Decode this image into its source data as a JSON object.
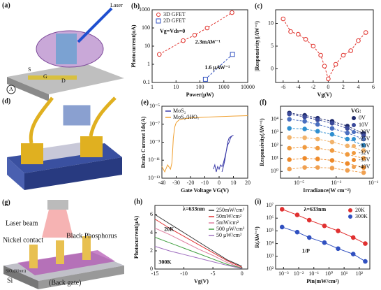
{
  "panels": {
    "a": {
      "letter": "(a)",
      "labels": [
        "Laser",
        "S",
        "G",
        "D",
        "A"
      ]
    },
    "d": {
      "letter": "(d)"
    },
    "g": {
      "letter": "(g)",
      "labels": [
        "Laser beam",
        "Nickel contact",
        "Black Phosphorus",
        "SiO₂(90nm)",
        "Si",
        "(Back gate)"
      ]
    }
  },
  "chart_data": [
    {
      "type": "scatter",
      "letter": "(b)",
      "xlabel": "Power(μW)",
      "ylabel": "Photocurrent(nA)",
      "xlog": true,
      "ylog": true,
      "xlim": [
        1,
        10000
      ],
      "xticks": [
        1,
        10,
        100,
        1000,
        10000
      ],
      "ylim": [
        0.1,
        1000
      ],
      "yticks": [
        0.1,
        1,
        10,
        100,
        1000
      ],
      "dashed": true,
      "hollow_markers": true,
      "legend": "upper left",
      "annotations": [
        "Vg=Vds=0",
        "2.3mAW⁻¹",
        "1.6 μAW⁻¹"
      ],
      "series": [
        {
          "name": "3D GFET",
          "color": "#e0302a",
          "marker": "circle",
          "x": [
            2,
            20,
            60,
            200,
            2200
          ],
          "values": [
            3.5,
            20,
            40,
            100,
            700
          ]
        },
        {
          "name": "2D GFET",
          "color": "#3050c0",
          "marker": "square",
          "x": [
            170,
            2300
          ],
          "values": [
            0.15,
            3.5
          ]
        }
      ]
    },
    {
      "type": "scatter",
      "letter": "(c)",
      "xlabel": "Vg(V)",
      "ylabel": "|Responsivity|(AW⁻¹)",
      "xlim": [
        -7,
        6
      ],
      "xticks": [
        -6,
        -4,
        -2,
        0,
        2,
        4,
        6
      ],
      "ylim": [
        -3,
        13
      ],
      "yticks": [
        0,
        5,
        10
      ],
      "dashed": true,
      "hollow_markers": true,
      "series": [
        {
          "name": "Responsivity",
          "color": "#e0302a",
          "marker": "circle",
          "x": [
            -6,
            -5,
            -4,
            -3,
            -2,
            -1,
            -0.5,
            0,
            1,
            2,
            3,
            4,
            5
          ],
          "values": [
            11,
            8.2,
            7.6,
            6.5,
            5,
            3,
            0.6,
            -2.2,
            1,
            3,
            4,
            6.2,
            8
          ]
        }
      ]
    },
    {
      "type": "line",
      "letter": "(e)",
      "xlabel": "Gate Voltage VG(V)",
      "ylabel": "Drain Current Ids(A)",
      "ylog": true,
      "xlim": [
        -40,
        20
      ],
      "xticks": [
        -40,
        -30,
        -20,
        -10,
        0,
        10,
        20
      ],
      "ylim": [
        1e-13,
        1e-05
      ],
      "yticks": [
        {
          "value": 1e-13,
          "label": "10⁻¹³"
        },
        {
          "value": 1e-11,
          "label": "10⁻¹¹"
        },
        {
          "value": 1e-09,
          "label": "10⁻⁹"
        },
        {
          "value": 1e-07,
          "label": "10⁻⁷"
        },
        {
          "value": 1e-05,
          "label": "10⁻⁵"
        }
      ],
      "legend": "upper left",
      "series": [
        {
          "name": "MoS₂",
          "color": "#3a3aa8",
          "marker": "none",
          "x": [
            -4,
            -3,
            -2,
            -1,
            0,
            1,
            2,
            3,
            4,
            5,
            6,
            7,
            8,
            9,
            10,
            9,
            8,
            7,
            6,
            5,
            4,
            3,
            2
          ],
          "values": [
            1e-12,
            3e-12,
            5e-13,
            2e-12,
            1e-12,
            3e-12,
            2e-12,
            5e-12,
            2e-11,
            1e-10,
            5e-10,
            1e-09,
            3e-09,
            5e-09,
            6e-09,
            5e-09,
            4e-09,
            3e-09,
            1e-09,
            1e-10,
            1e-11,
            2e-12,
            5e-13
          ]
        },
        {
          "name": "MoS₂/HfOₓ",
          "color": "#f0a030",
          "marker": "none",
          "x": [
            -40,
            -38,
            -36,
            -34,
            -33,
            -32.5,
            -32,
            -31,
            -30,
            -28,
            -25,
            -20,
            -10,
            0,
            10,
            20
          ],
          "values": [
            2e-12,
            5e-13,
            3e-12,
            1e-12,
            5e-12,
            1e-10,
            3e-09,
            5e-08,
            1.5e-07,
            3e-07,
            4e-07,
            5e-07,
            6e-07,
            7e-07,
            8e-07,
            9e-07
          ]
        }
      ]
    },
    {
      "type": "scatter",
      "letter": "(f)",
      "xlabel": "Irradiance(W cm⁻²)",
      "ylabel": "Responsivity(AW⁻¹)",
      "xlog": true,
      "ylog": true,
      "xlim": [
        1e-06,
        0.1
      ],
      "xticks": [
        {
          "value": 1e-05,
          "label": "10⁻⁵"
        },
        {
          "value": 0.001,
          "label": "10⁻³"
        },
        {
          "value": 0.1,
          "label": "10⁻¹"
        }
      ],
      "ylim": [
        0.3,
        100000
      ],
      "yticks": [
        {
          "value": 1,
          "label": "10⁰"
        },
        {
          "value": 10,
          "label": "10¹"
        },
        {
          "value": 100,
          "label": "10²"
        },
        {
          "value": 1000,
          "label": "10³"
        },
        {
          "value": 10000,
          "label": "10⁴"
        }
      ],
      "dashed": true,
      "legend": "upper right",
      "legend_title": "VG:",
      "series": [
        {
          "name": "0V",
          "color": "#1f2a6b",
          "marker": "circle",
          "x": [
            3e-06,
            2e-05,
            0.0001,
            0.0006,
            0.004,
            0.03
          ],
          "values": [
            30000,
            20000,
            12000,
            7000,
            3000,
            800
          ]
        },
        {
          "name": "10V",
          "color": "#3b4a9a",
          "marker": "circle",
          "x": [
            3e-06,
            2e-05,
            0.0001,
            0.0006,
            0.004,
            0.03
          ],
          "values": [
            25000,
            15000,
            9000,
            5000,
            2000,
            600
          ]
        },
        {
          "name": "-20V",
          "color": "#4a6fc0",
          "marker": "circle",
          "x": [
            3e-06,
            2e-05,
            0.0001,
            0.0006,
            0.004,
            0.03
          ],
          "values": [
            10000,
            7000,
            4000,
            2000,
            900,
            300
          ]
        },
        {
          "name": "-25V",
          "color": "#2f8fd0",
          "marker": "circle",
          "x": [
            3e-06,
            2e-05,
            0.0001,
            0.0006,
            0.004,
            0.03
          ],
          "values": [
            2000,
            1800,
            1200,
            700,
            300,
            100
          ]
        },
        {
          "name": "-30V",
          "color": "#f2b36b",
          "marker": "circle",
          "x": [
            3e-06,
            2e-05,
            0.0001,
            0.0006,
            0.004,
            0.03
          ],
          "values": [
            400,
            380,
            300,
            180,
            90,
            40
          ]
        },
        {
          "name": "-32V",
          "color": "#f09a3e",
          "marker": "circle",
          "x": [
            3e-06,
            2e-05,
            0.0001,
            0.0006,
            0.004,
            0.03
          ],
          "values": [
            60,
            70,
            60,
            40,
            20,
            10
          ]
        },
        {
          "name": "-35V",
          "color": "#ee8a2a",
          "marker": "circle",
          "x": [
            3e-06,
            2e-05,
            0.0001,
            0.0006,
            0.004,
            0.03
          ],
          "values": [
            8,
            10,
            9,
            7,
            4,
            2
          ]
        },
        {
          "name": "-40V",
          "color": "#f0a050",
          "marker": "circle",
          "x": [
            3e-06,
            2e-05,
            0.0001,
            0.0006,
            0.004,
            0.03
          ],
          "values": [
            1.5,
            2,
            2,
            1.8,
            1.2,
            0.8
          ]
        }
      ]
    },
    {
      "type": "line",
      "letter": "(h)",
      "xlabel": "Vg(V)",
      "ylabel": "Photocurrent(μA)",
      "xlim": [
        -15,
        1
      ],
      "xticks": [
        -15,
        -10,
        -5,
        0
      ],
      "ylim": [
        0,
        7
      ],
      "yticks": [
        0,
        2,
        4,
        6
      ],
      "legend": "upper right",
      "annotations": [
        "λ=633nm",
        "20K",
        "300K"
      ],
      "series": [
        {
          "name": "250mW/cm²",
          "color": "#333333",
          "marker": "none",
          "x": [
            -15,
            -12.5,
            -10,
            -7.5,
            -5,
            -2.5,
            0
          ],
          "values": [
            6,
            5,
            4,
            3,
            2,
            1,
            0.3
          ]
        },
        {
          "name": "50mW/cm²",
          "color": "#e03030",
          "marker": "none",
          "x": [
            -15,
            -12.5,
            -10,
            -7.5,
            -5,
            -2.5,
            0
          ],
          "values": [
            5.5,
            4.5,
            3.6,
            2.7,
            1.8,
            0.9,
            0.2
          ]
        },
        {
          "name": "5mW/cm²",
          "color": "#e080a0",
          "marker": "none",
          "x": [
            -15,
            -12.5,
            -10,
            -7.5,
            -5,
            -2.5,
            0
          ],
          "values": [
            4.5,
            3.8,
            3,
            2.2,
            1.5,
            0.7,
            0.1
          ]
        },
        {
          "name": "500 μW/cm²",
          "color": "#40a040",
          "marker": "none",
          "x": [
            -15,
            -12.5,
            -10,
            -7.5,
            -5,
            -2.5,
            0
          ],
          "values": [
            3.5,
            2.9,
            2.3,
            1.7,
            1.1,
            0.5,
            0.1
          ]
        },
        {
          "name": "50 μW/cm²",
          "color": "#a070c0",
          "marker": "none",
          "x": [
            -15,
            -12.5,
            -10,
            -7.5,
            -5,
            -2.5,
            0
          ],
          "values": [
            2.5,
            2,
            1.6,
            1.2,
            0.8,
            0.4,
            0.05
          ]
        }
      ]
    },
    {
      "type": "scatter",
      "letter": "(i)",
      "xlabel": "Pin(mW/cm²)",
      "ylabel": "R(AW⁻¹)",
      "xlog": true,
      "ylog": true,
      "xlim": [
        0.0003,
        500
      ],
      "xticks": [
        {
          "value": 0.001,
          "label": "10⁻³"
        },
        {
          "value": 0.01,
          "label": "10⁻²"
        },
        {
          "value": 0.1,
          "label": "10⁻¹"
        },
        {
          "value": 1,
          "label": "10⁰"
        },
        {
          "value": 10,
          "label": "10¹"
        },
        {
          "value": 100,
          "label": "10²"
        }
      ],
      "ylim": [
        100,
        10000000
      ],
      "yticks": [
        {
          "value": 100,
          "label": "10²"
        },
        {
          "value": 1000,
          "label": "10³"
        },
        {
          "value": 10000,
          "label": "10⁴"
        },
        {
          "value": 100000,
          "label": "10⁵"
        },
        {
          "value": 1000000,
          "label": "10⁶"
        },
        {
          "value": 10000000,
          "label": "10⁷"
        }
      ],
      "legend": "upper right",
      "annotations": [
        "λ=633nm",
        "1/P"
      ],
      "series": [
        {
          "name": "20K",
          "color": "#e03030",
          "marker": "circle",
          "x": [
            0.0008,
            0.008,
            0.05,
            0.5,
            4,
            40,
            250
          ],
          "values": [
            5000000,
            1800000,
            700000,
            250000,
            100000,
            30000,
            10000
          ]
        },
        {
          "name": "300K",
          "color": "#3050c0",
          "marker": "circle",
          "x": [
            0.0008,
            0.008,
            0.05,
            0.5,
            4,
            40,
            250
          ],
          "values": [
            200000,
            80000,
            30000,
            12000,
            4000,
            1500,
            400
          ]
        }
      ]
    }
  ]
}
